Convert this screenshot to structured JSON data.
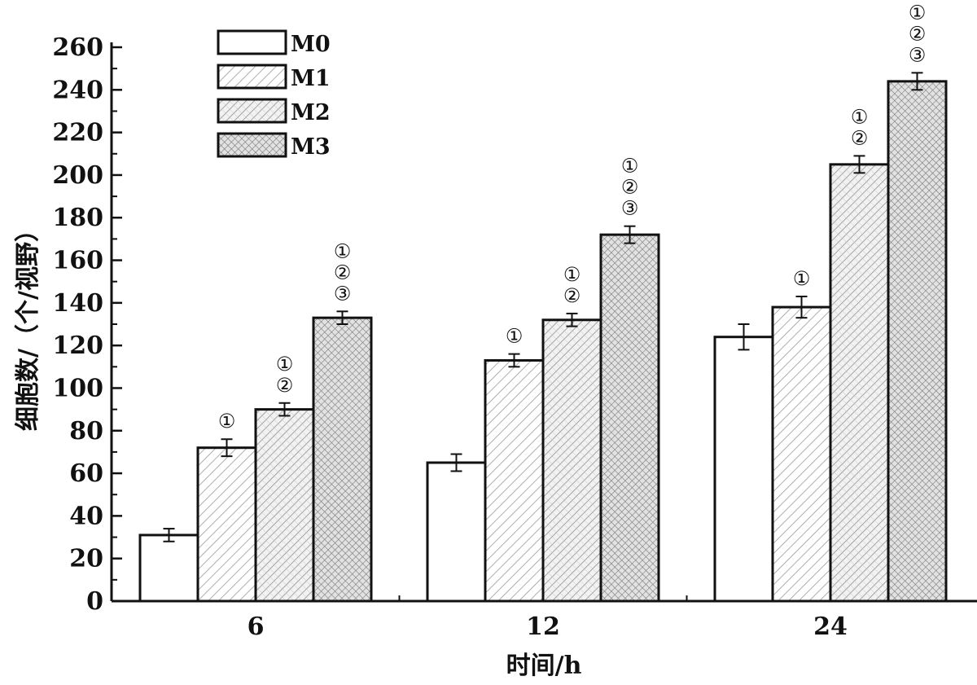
{
  "chart_data": {
    "type": "bar",
    "title": "",
    "xlabel": "时间/h",
    "ylabel": "细胞数/（个/视野）",
    "categories": [
      "6",
      "12",
      "24"
    ],
    "ylim": [
      0,
      260
    ],
    "yticks": [
      0,
      20,
      40,
      60,
      80,
      100,
      120,
      140,
      160,
      180,
      200,
      220,
      240,
      260
    ],
    "legend_position": "top-left",
    "grid": false,
    "series": [
      {
        "name": "M0",
        "values": [
          31,
          65,
          124
        ],
        "errors": [
          3,
          4,
          6
        ],
        "annotations": [
          "",
          "",
          ""
        ],
        "pattern": "none"
      },
      {
        "name": "M1",
        "values": [
          72,
          113,
          138
        ],
        "errors": [
          4,
          3,
          5
        ],
        "annotations": [
          "①",
          "①",
          "①"
        ],
        "pattern": "diagonal"
      },
      {
        "name": "M2",
        "values": [
          90,
          132,
          205
        ],
        "errors": [
          3,
          3,
          4
        ],
        "annotations": [
          "①②",
          "①②",
          "①②"
        ],
        "pattern": "crosshatch"
      },
      {
        "name": "M3",
        "values": [
          133,
          172,
          244
        ],
        "errors": [
          3,
          4,
          4
        ],
        "annotations": [
          "①②③",
          "①②③",
          "①②③"
        ],
        "pattern": "dots"
      }
    ]
  }
}
